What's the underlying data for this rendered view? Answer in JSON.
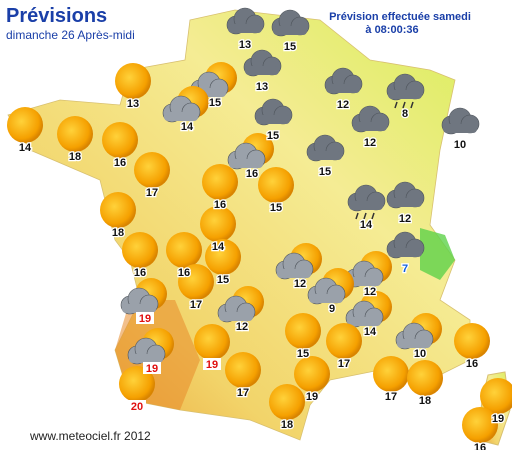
{
  "header": {
    "title": "Prévisions",
    "subtitle": "dimanche 26 Après-midi"
  },
  "issued": {
    "line1": "Prévision effectuée samedi",
    "line2": "à 08:00:36"
  },
  "footer": "www.meteociel.fr 2012",
  "stations": [
    {
      "temp": 13
    },
    {
      "temp": 15
    },
    {
      "temp": 13
    },
    {
      "temp": 15
    },
    {
      "temp": 13
    },
    {
      "temp": 12
    },
    {
      "temp": 8
    },
    {
      "temp": 14
    },
    {
      "temp": 18
    },
    {
      "temp": 14
    },
    {
      "temp": 15
    },
    {
      "temp": 12
    },
    {
      "temp": 10
    },
    {
      "temp": 16
    },
    {
      "temp": 17
    },
    {
      "temp": 16
    },
    {
      "temp": 15
    },
    {
      "temp": 16
    },
    {
      "temp": 15
    },
    {
      "temp": 14
    },
    {
      "temp": 12
    },
    {
      "temp": 18
    },
    {
      "temp": 14
    },
    {
      "temp": 16
    },
    {
      "temp": 16
    },
    {
      "temp": 15
    },
    {
      "temp": 12
    },
    {
      "temp": 12
    },
    {
      "temp": 7
    },
    {
      "temp": 17
    },
    {
      "temp": 9
    },
    {
      "temp": 19
    },
    {
      "temp": 12
    },
    {
      "temp": 14
    },
    {
      "temp": 19
    },
    {
      "temp": 19
    },
    {
      "temp": 15
    },
    {
      "temp": 10
    },
    {
      "temp": 16
    },
    {
      "temp": 17
    },
    {
      "temp": 17
    },
    {
      "temp": 19
    },
    {
      "temp": 17
    },
    {
      "temp": 18
    },
    {
      "temp": 20
    },
    {
      "temp": 19
    },
    {
      "temp": 18
    },
    {
      "temp": 16
    }
  ]
}
